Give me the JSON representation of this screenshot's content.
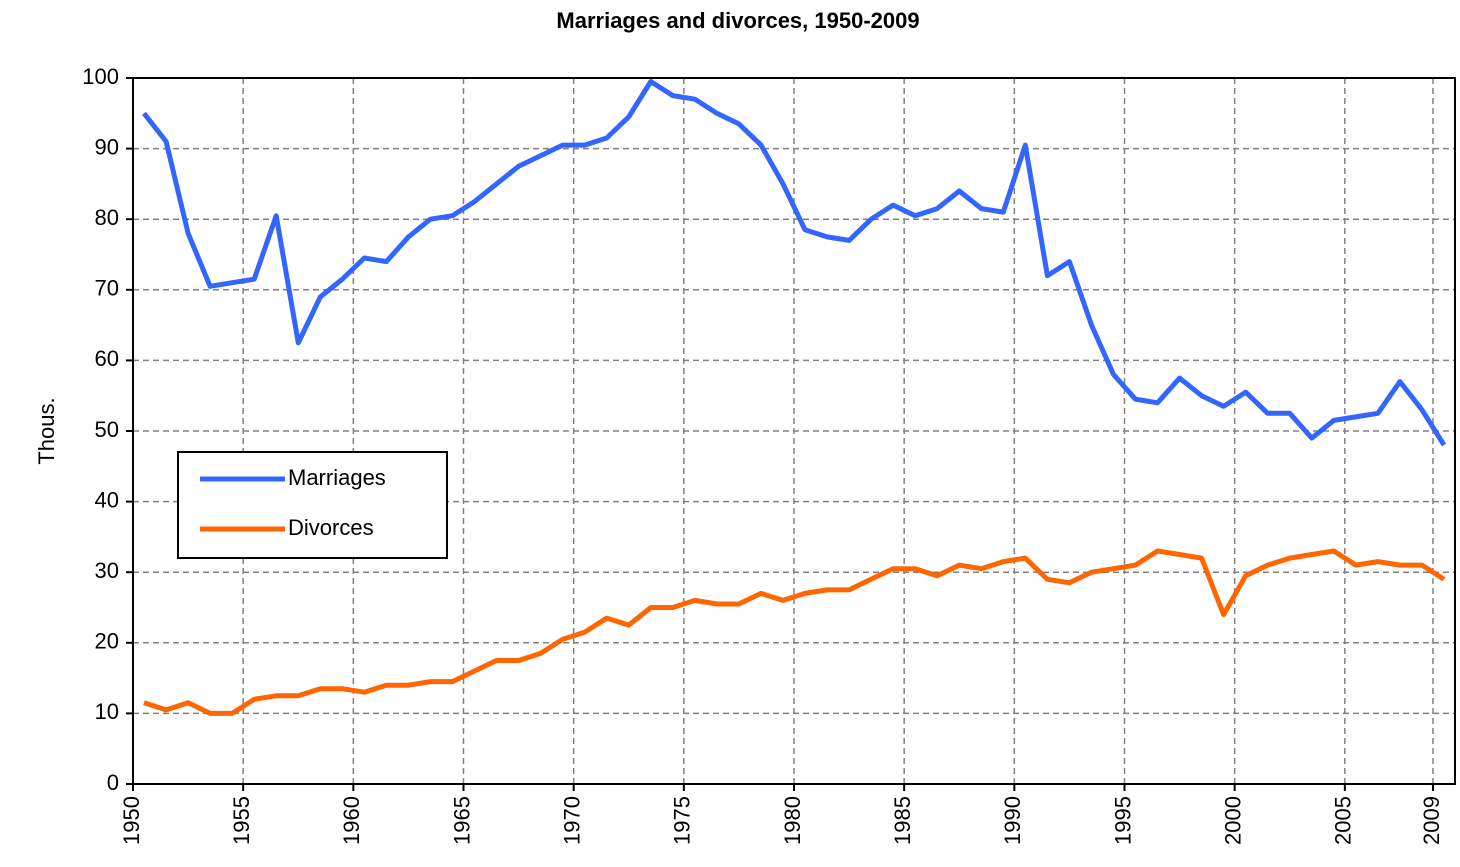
{
  "chart_data": {
    "type": "line",
    "title": "Marriages and divorces, 1950-2009",
    "ylabel": "Thous.",
    "x": [
      1950,
      1951,
      1952,
      1953,
      1954,
      1955,
      1956,
      1957,
      1958,
      1959,
      1960,
      1961,
      1962,
      1963,
      1964,
      1965,
      1966,
      1967,
      1968,
      1969,
      1970,
      1971,
      1972,
      1973,
      1974,
      1975,
      1976,
      1977,
      1978,
      1979,
      1980,
      1981,
      1982,
      1983,
      1984,
      1985,
      1986,
      1987,
      1988,
      1989,
      1990,
      1991,
      1992,
      1993,
      1994,
      1995,
      1996,
      1997,
      1998,
      1999,
      2000,
      2001,
      2002,
      2003,
      2004,
      2005,
      2006,
      2007,
      2008,
      2009
    ],
    "series": [
      {
        "name": "Marriages",
        "color": "#3366ff",
        "values": [
          95,
          91,
          78,
          70.5,
          71,
          71.5,
          80.5,
          62.5,
          69,
          71.5,
          74.5,
          74,
          77.5,
          80,
          80.5,
          82.5,
          85,
          87.5,
          89,
          90.5,
          90.5,
          91.5,
          94.5,
          99.5,
          97.5,
          97,
          95,
          93.5,
          90.5,
          85,
          78.5,
          77.5,
          77,
          80,
          82,
          80.5,
          81.5,
          84,
          81.5,
          81,
          90.5,
          72,
          74,
          65,
          58,
          54.5,
          54,
          57.5,
          55,
          53.5,
          55.5,
          52.5,
          52.5,
          49,
          51.5,
          52,
          52.5,
          57,
          53,
          48
        ]
      },
      {
        "name": "Divorces",
        "color": "#ff6600",
        "values": [
          11.5,
          10.5,
          11.5,
          10,
          10,
          12,
          12.5,
          12.5,
          13.5,
          13.5,
          13,
          14,
          14,
          14.5,
          14.5,
          16,
          17.5,
          17.5,
          18.5,
          20.5,
          21.5,
          23.5,
          22.5,
          25,
          25,
          26,
          25.5,
          25.5,
          27,
          26,
          27,
          27.5,
          27.5,
          29,
          30.5,
          30.5,
          29.5,
          31,
          30.5,
          31.5,
          32,
          29,
          28.5,
          30,
          30.5,
          31,
          33,
          32.5,
          32,
          24,
          29.5,
          31,
          32,
          32.5,
          33,
          31,
          31.5,
          31,
          31,
          29
        ]
      }
    ],
    "xlim": [
      1950,
      2010
    ],
    "xticks": [
      1950,
      1955,
      1960,
      1965,
      1970,
      1975,
      1980,
      1985,
      1990,
      1995,
      2000,
      2005,
      2009
    ],
    "ylim": [
      0,
      100
    ],
    "yticks": [
      0,
      10,
      20,
      30,
      40,
      50,
      60,
      70,
      80,
      90,
      100
    ],
    "grid": true,
    "legend": "left"
  }
}
